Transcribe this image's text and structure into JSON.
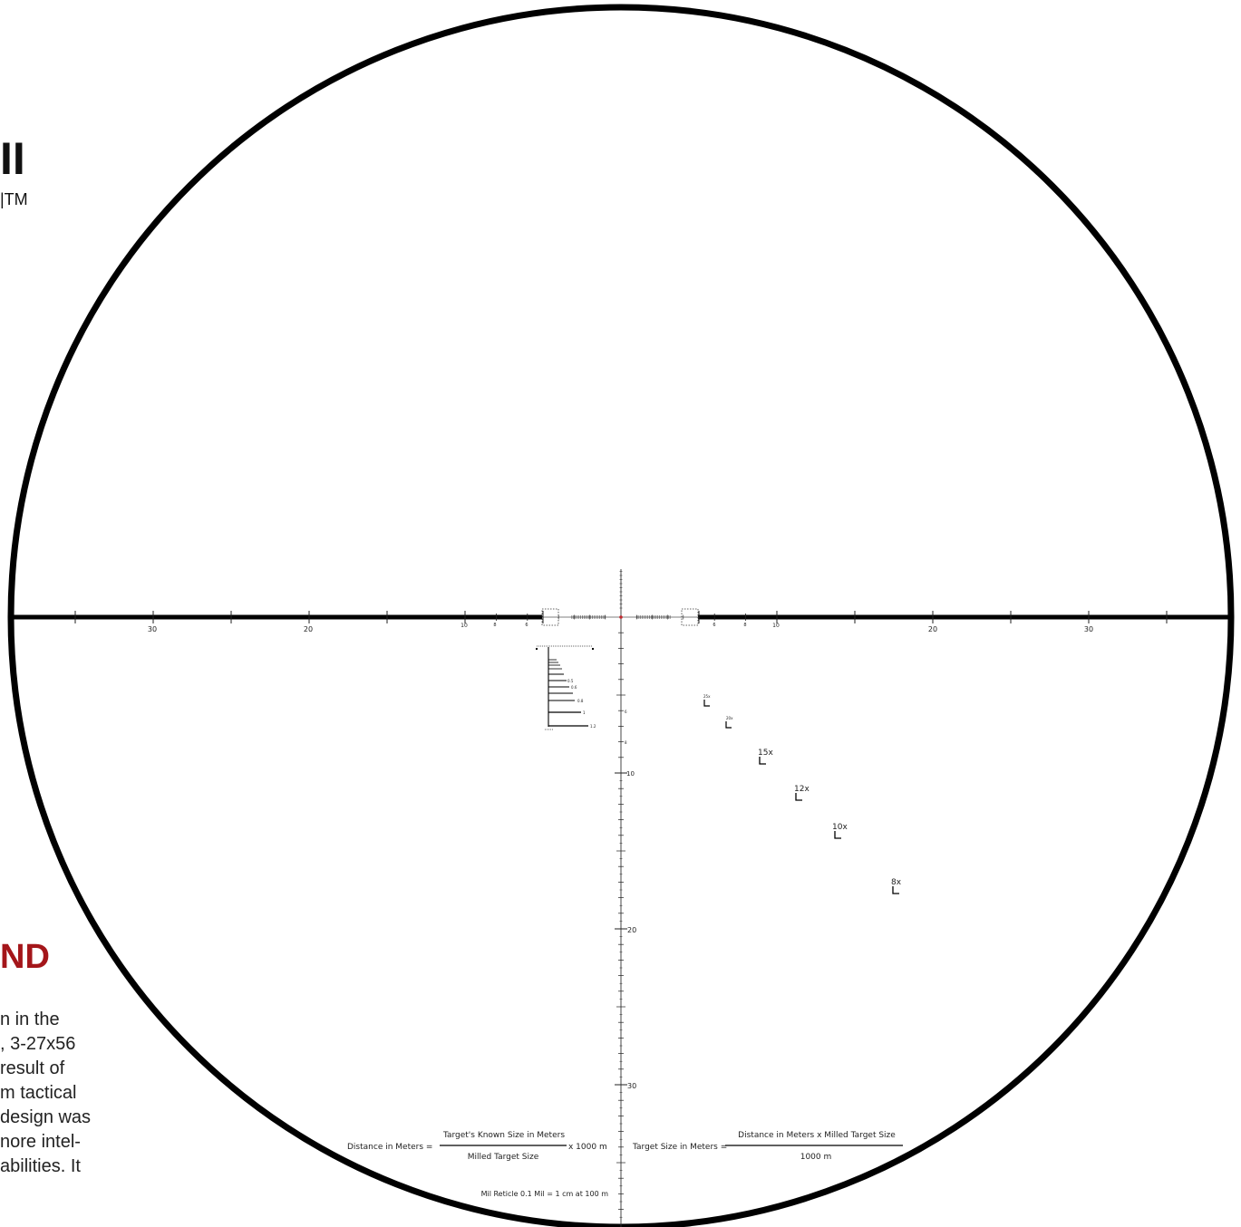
{
  "side_panel": {
    "title_fragment": "II",
    "trademark": "|TM",
    "heading_fragment": "ND",
    "paragraph_lines": [
      "n in the",
      ", 3-27x56",
      "result of",
      "m tactical",
      "design was",
      "nore intel-",
      "abilities.  It"
    ]
  },
  "reticle": {
    "horizontal_labels": [
      "30",
      "20",
      "10",
      "8",
      "6",
      "6",
      "8",
      "10",
      "20",
      "30"
    ],
    "vertical_labels": [
      "6",
      "8",
      "10",
      "20",
      "30"
    ],
    "magnification_marks": [
      "25x",
      "20x",
      "15x",
      "12x",
      "10x",
      "8x"
    ],
    "ranging_values": [
      "0.5",
      "0.6",
      "0.8",
      "1",
      "1.2"
    ],
    "formulas": {
      "distance_label": "Distance in Meters =",
      "distance_numerator": "Target's Known Size in Meters",
      "distance_denominator": "Milled Target Size",
      "distance_multiplier": "x 1000 m",
      "size_label": "Target Size in Meters =",
      "size_numerator": "Distance in Meters  x  Milled Target Size",
      "size_denominator": "1000 m",
      "mil_note": "Mil Reticle 0.1 Mil = 1 cm at 100 m"
    }
  },
  "colors": {
    "ring": "#000000",
    "center_dot": "#c1272d",
    "heading_red": "#a4161a"
  }
}
